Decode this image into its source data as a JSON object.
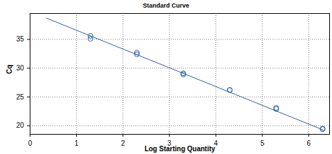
{
  "chart_data": {
    "type": "scatter",
    "title": "Standard Curve",
    "x_label": "Log Starting Quantity",
    "y_label": "Cq",
    "xlim": [
      0,
      6.45
    ],
    "ylim": [
      18.5,
      39.5
    ],
    "xticks": [
      0,
      1,
      2,
      3,
      4,
      5,
      6
    ],
    "yticks": [
      20,
      25,
      30,
      35
    ],
    "grid": true,
    "series": [
      {
        "type": "scatter",
        "marker": "circle",
        "color": "#2a5ea8",
        "x": [
          1.3,
          1.3,
          2.3,
          2.3,
          3.3,
          3.3,
          4.3,
          4.3,
          5.3,
          5.3,
          6.3,
          6.3
        ],
        "values": [
          35.6,
          35.1,
          32.7,
          32.4,
          29.1,
          28.9,
          26.2,
          26.2,
          23.1,
          22.9,
          19.5,
          19.4
        ]
      },
      {
        "type": "line",
        "line_style": "solid",
        "color": "#2a5ea8",
        "x": [
          0.35,
          6.3
        ],
        "values": [
          38.7,
          19.3
        ]
      }
    ]
  }
}
